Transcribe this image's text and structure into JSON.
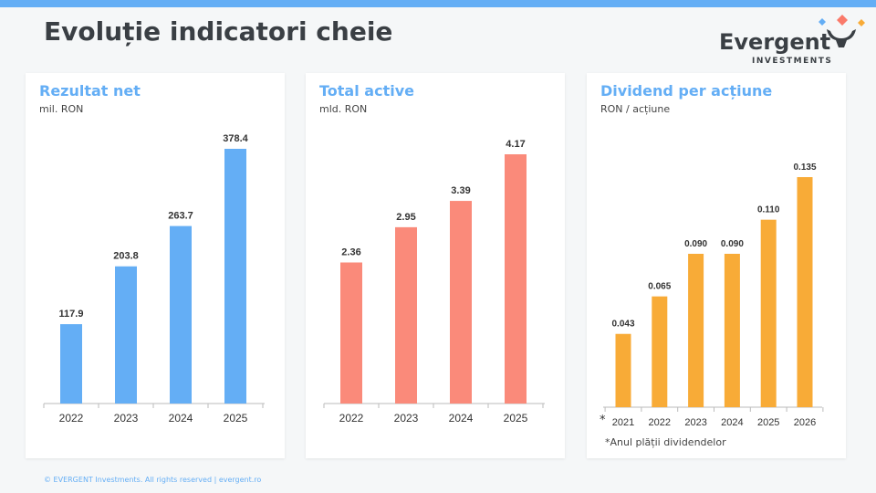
{
  "header": {
    "title": "Evoluție indicatori cheie"
  },
  "logo": {
    "word": "Evergent",
    "sub": "INVESTMENTS"
  },
  "footer": "© EVERGENT Investments. All rights reserved  |  evergent.ro",
  "chart_data": [
    {
      "type": "bar",
      "title": "Rezultat net",
      "ylabel": "mil. RON",
      "categories": [
        "2022",
        "2023",
        "2024",
        "2025"
      ],
      "values": [
        117.9,
        203.8,
        263.7,
        378.4
      ],
      "labels": [
        "117.9",
        "203.8",
        "263.7",
        "378.4"
      ],
      "color": "#64aef5"
    },
    {
      "type": "bar",
      "title": "Total active",
      "ylabel": "mld. RON",
      "categories": [
        "2022",
        "2023",
        "2024",
        "2025"
      ],
      "values": [
        2.36,
        2.95,
        3.39,
        4.17
      ],
      "labels": [
        "2.36",
        "2.95",
        "3.39",
        "4.17"
      ],
      "color": "#fa8a7a"
    },
    {
      "type": "bar",
      "title": "Dividend per acțiune",
      "ylabel": "RON / acțiune",
      "categories": [
        "2021",
        "2022",
        "2023",
        "2024",
        "2025",
        "2026"
      ],
      "values": [
        0.043,
        0.065,
        0.09,
        0.09,
        0.11,
        0.135
      ],
      "labels": [
        "0.043",
        "0.065",
        "0.090",
        "0.090",
        "0.110",
        "0.135"
      ],
      "color": "#f8ab37",
      "axis_marker": "*",
      "note": "*Anul plății dividendelor"
    }
  ]
}
